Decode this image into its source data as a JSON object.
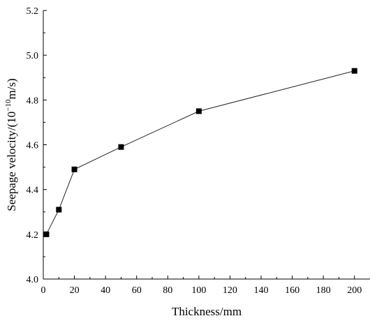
{
  "chart_data": {
    "type": "line",
    "title": "",
    "xlabel": "Thickness/mm",
    "ylabel": {
      "prefix": "Seepage velocity/(10",
      "superscript": "−10",
      "suffix": "m/s)"
    },
    "xlim": [
      0,
      210
    ],
    "ylim": [
      4.0,
      5.2
    ],
    "xticks": [
      "0",
      "20",
      "40",
      "60",
      "80",
      "100",
      "120",
      "140",
      "160",
      "180",
      "200"
    ],
    "yticks": [
      "4.0",
      "4.2",
      "4.4",
      "4.6",
      "4.8",
      "5.0",
      "5.2"
    ],
    "grid": false,
    "legend": "none",
    "series": [
      {
        "marker": "square",
        "color": "#000000",
        "x": [
          2,
          10,
          20,
          50,
          100,
          200
        ],
        "y": [
          4.2,
          4.31,
          4.49,
          4.59,
          4.75,
          4.93
        ]
      }
    ]
  }
}
